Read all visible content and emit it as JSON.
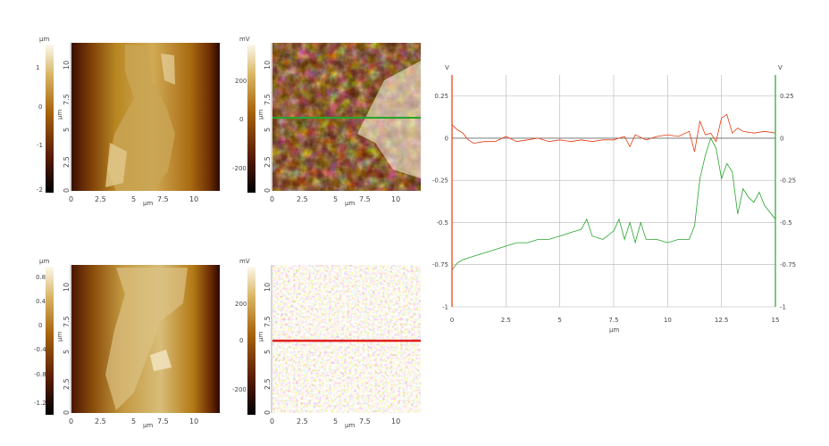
{
  "colors": {
    "red_line": "#e8380c",
    "green_line": "#27a52c",
    "grid": "#b5b5b5",
    "zero_line": "#666666",
    "left_axis": "#e8380c",
    "right_axis": "#27a52c"
  },
  "panels": [
    {
      "id": "topo-top",
      "colorbar_unit": "µm",
      "colorbar_ticks": [
        "1",
        "0",
        "-1",
        "-2"
      ],
      "axis_unit": "µm",
      "x_ticks": [
        "0",
        "2.5",
        "5",
        "7.5",
        "10"
      ],
      "y_ticks": [
        "0",
        "2.5",
        "5",
        "7.5",
        "10"
      ]
    },
    {
      "id": "potential-top",
      "colorbar_unit": "mV",
      "colorbar_ticks": [
        "200",
        "0",
        "-200"
      ],
      "axis_unit": "µm",
      "x_ticks": [
        "0",
        "2.5",
        "5",
        "7.5",
        "10"
      ],
      "y_ticks": [
        "0",
        "2.5",
        "5",
        "7.5",
        "10"
      ]
    },
    {
      "id": "topo-bottom",
      "colorbar_unit": "µm",
      "colorbar_ticks": [
        "0.8",
        "0.4",
        "0",
        "-0.4",
        "-0.8",
        "-1.2"
      ],
      "axis_unit": "µm",
      "x_ticks": [
        "0",
        "2.5",
        "5",
        "7.5",
        "10"
      ],
      "y_ticks": [
        "0",
        "2.5",
        "5",
        "7.5",
        "10"
      ]
    },
    {
      "id": "potential-bottom",
      "colorbar_unit": "mV",
      "colorbar_ticks": [
        "200",
        "0",
        "-200"
      ],
      "axis_unit": "µm",
      "x_ticks": [
        "0",
        "2.5",
        "5",
        "7.5",
        "10"
      ],
      "y_ticks": [
        "0",
        "2.5",
        "5",
        "7.5",
        "10"
      ]
    }
  ],
  "chart_data": {
    "type": "line",
    "xlabel": "µm",
    "ylabel_left": "V",
    "ylabel_right": "V",
    "xlim": [
      0,
      15
    ],
    "ylim": [
      -1,
      0.375
    ],
    "x_ticks": [
      "0",
      "2.5",
      "5",
      "7.5",
      "10",
      "12.5",
      "15"
    ],
    "y_ticks_left": [
      "0.25",
      "0",
      "-0.25",
      "-0.5",
      "-0.75",
      "-1"
    ],
    "y_ticks_right": [
      "0.25",
      "0",
      "-0.25",
      "-0.5",
      "-0.75",
      "-1"
    ],
    "grid": true,
    "series": [
      {
        "color": "#e8380c",
        "x": [
          0,
          0.25,
          0.5,
          0.75,
          1,
          1.5,
          2,
          2.5,
          3,
          3.5,
          4,
          4.5,
          5,
          5.5,
          6,
          6.5,
          7,
          7.5,
          8,
          8.25,
          8.5,
          9,
          9.5,
          10,
          10.5,
          11,
          11.25,
          11.5,
          11.75,
          12,
          12.25,
          12.5,
          12.75,
          13,
          13.25,
          13.5,
          14,
          14.5,
          15
        ],
        "y": [
          0.08,
          0.05,
          0.03,
          -0.01,
          -0.03,
          -0.02,
          -0.02,
          0.01,
          -0.02,
          -0.01,
          0.0,
          -0.02,
          -0.01,
          -0.02,
          -0.01,
          -0.02,
          -0.01,
          -0.01,
          0.01,
          -0.05,
          0.02,
          -0.01,
          0.01,
          0.02,
          0.01,
          0.04,
          -0.08,
          0.1,
          0.02,
          0.03,
          -0.02,
          0.12,
          0.14,
          0.03,
          0.06,
          0.04,
          0.03,
          0.04,
          0.03
        ]
      },
      {
        "color": "#27a52c",
        "x": [
          0,
          0.25,
          0.5,
          1,
          1.5,
          2,
          2.5,
          3,
          3.5,
          4,
          4.5,
          5,
          5.5,
          6,
          6.25,
          6.5,
          7,
          7.5,
          7.75,
          8,
          8.25,
          8.5,
          8.75,
          9,
          9.5,
          10,
          10.5,
          11,
          11.25,
          11.5,
          11.75,
          12,
          12.25,
          12.5,
          12.75,
          13,
          13.25,
          13.5,
          13.75,
          14,
          14.25,
          14.5,
          15
        ],
        "y": [
          -0.78,
          -0.74,
          -0.72,
          -0.7,
          -0.68,
          -0.66,
          -0.64,
          -0.62,
          -0.62,
          -0.6,
          -0.6,
          -0.58,
          -0.56,
          -0.54,
          -0.48,
          -0.58,
          -0.6,
          -0.55,
          -0.48,
          -0.6,
          -0.5,
          -0.62,
          -0.5,
          -0.6,
          -0.6,
          -0.62,
          -0.6,
          -0.6,
          -0.52,
          -0.24,
          -0.1,
          0.0,
          -0.06,
          -0.24,
          -0.15,
          -0.2,
          -0.45,
          -0.3,
          -0.35,
          -0.38,
          -0.32,
          -0.4,
          -0.48
        ]
      }
    ]
  }
}
